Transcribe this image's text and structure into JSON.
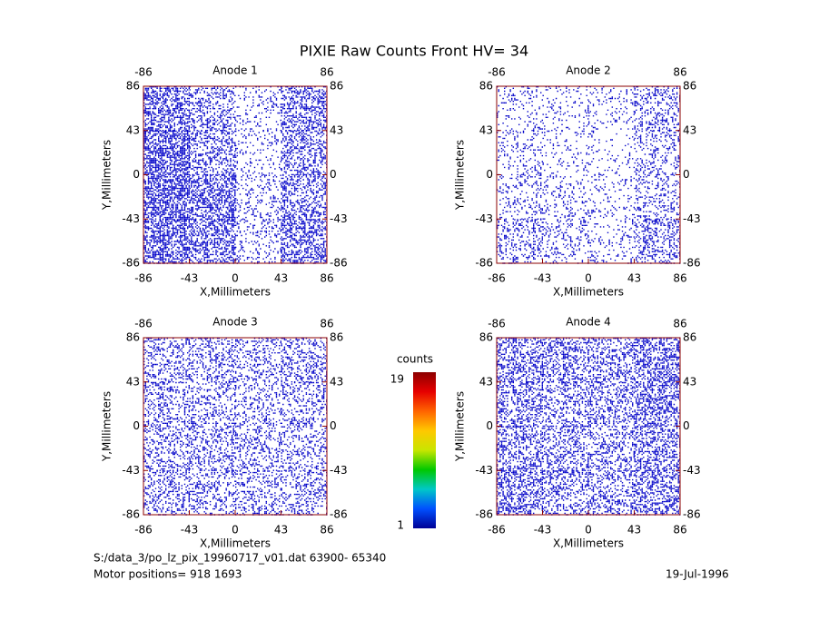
{
  "title": "PIXIE Raw Counts Front HV= 34",
  "chart_data": [
    {
      "type": "heatmap",
      "title": "Anode 1",
      "xlabel": "X,Millimeters",
      "ylabel": "Y,Millimeters",
      "xlim": [
        -86,
        86
      ],
      "ylim": [
        -86,
        86
      ],
      "xticks": [
        -86,
        -43,
        0,
        43,
        86
      ],
      "yticks": [
        -86,
        -43,
        0,
        43,
        86
      ],
      "x2ticks": [
        -86,
        86
      ],
      "y2ticks": [
        -86,
        -43,
        0,
        43,
        86
      ],
      "color": "#0000c8",
      "xbins": [
        -86,
        -43,
        0,
        43,
        86
      ],
      "ybins": [
        -86,
        -43,
        0,
        43,
        86
      ],
      "z": [
        [
          2.4,
          2.0,
          0.8,
          2.0
        ],
        [
          2.6,
          2.2,
          0.7,
          1.8
        ],
        [
          2.6,
          1.6,
          0.6,
          1.6
        ],
        [
          2.2,
          1.4,
          0.6,
          1.8
        ]
      ]
    },
    {
      "type": "heatmap",
      "title": "Anode 2",
      "xlabel": "X,Millimeters",
      "ylabel": "Y,Millimeters",
      "xlim": [
        -86,
        86
      ],
      "ylim": [
        -86,
        86
      ],
      "xticks": [
        -86,
        -43,
        0,
        43,
        86
      ],
      "yticks": [
        -86,
        -43,
        0,
        43,
        86
      ],
      "x2ticks": [
        -86,
        86
      ],
      "y2ticks": [
        -86,
        -43,
        0,
        43,
        86
      ],
      "color": "#0000c8",
      "xbins": [
        -86,
        -43,
        0,
        43,
        86
      ],
      "ybins": [
        -86,
        -43,
        0,
        43,
        86
      ],
      "z": [
        [
          1.0,
          0.8,
          0.6,
          1.4
        ],
        [
          0.8,
          0.7,
          0.5,
          1.0
        ],
        [
          0.6,
          0.5,
          0.4,
          0.9
        ],
        [
          0.7,
          0.5,
          0.5,
          1.2
        ]
      ]
    },
    {
      "type": "heatmap",
      "title": "Anode 3",
      "xlabel": "X,Millimeters",
      "ylabel": "Y,Millimeters",
      "xlim": [
        -86,
        86
      ],
      "ylim": [
        -86,
        86
      ],
      "xticks": [
        -86,
        -43,
        0,
        43,
        86
      ],
      "yticks": [
        -86,
        -43,
        0,
        43,
        86
      ],
      "x2ticks": [
        -86,
        86
      ],
      "y2ticks": [
        -86,
        -43,
        0,
        43,
        86
      ],
      "color": "#0000c8",
      "xbins": [
        -86,
        -43,
        0,
        43,
        86
      ],
      "ybins": [
        -86,
        -43,
        0,
        43,
        86
      ],
      "z": [
        [
          1.3,
          1.2,
          1.1,
          1.2
        ],
        [
          1.3,
          1.2,
          1.1,
          1.2
        ],
        [
          1.2,
          1.1,
          1.0,
          1.2
        ],
        [
          1.3,
          1.2,
          1.1,
          1.3
        ]
      ]
    },
    {
      "type": "heatmap",
      "title": "Anode 4",
      "xlabel": "X,Millimeters",
      "ylabel": "Y,Millimeters",
      "xlim": [
        -86,
        86
      ],
      "ylim": [
        -86,
        86
      ],
      "xticks": [
        -86,
        -43,
        0,
        43,
        86
      ],
      "yticks": [
        -86,
        -43,
        0,
        43,
        86
      ],
      "x2ticks": [
        -86,
        86
      ],
      "y2ticks": [
        -86,
        -43,
        0,
        43,
        86
      ],
      "color": "#0000c8",
      "xbins": [
        -86,
        -43,
        0,
        43,
        86
      ],
      "ybins": [
        -86,
        -43,
        0,
        43,
        86
      ],
      "z": [
        [
          1.8,
          1.5,
          1.4,
          1.9
        ],
        [
          1.6,
          1.4,
          1.3,
          1.8
        ],
        [
          1.6,
          1.4,
          1.3,
          1.8
        ],
        [
          1.9,
          1.6,
          1.5,
          2.0
        ]
      ]
    }
  ],
  "colorbar": {
    "label": "counts",
    "zlim": [
      1,
      19
    ],
    "ticks": [
      1,
      19
    ],
    "colors": [
      "#000096",
      "#0050ff",
      "#00c8c8",
      "#00c800",
      "#c8e600",
      "#ffc800",
      "#ff6400",
      "#e60000",
      "#8c0000"
    ]
  },
  "footer": {
    "file": "S:/data_3/po_lz_pix_19960717_v01.dat   63900- 65340",
    "motor": "Motor positions= 918 1693",
    "date": "19-Jul-1996"
  }
}
